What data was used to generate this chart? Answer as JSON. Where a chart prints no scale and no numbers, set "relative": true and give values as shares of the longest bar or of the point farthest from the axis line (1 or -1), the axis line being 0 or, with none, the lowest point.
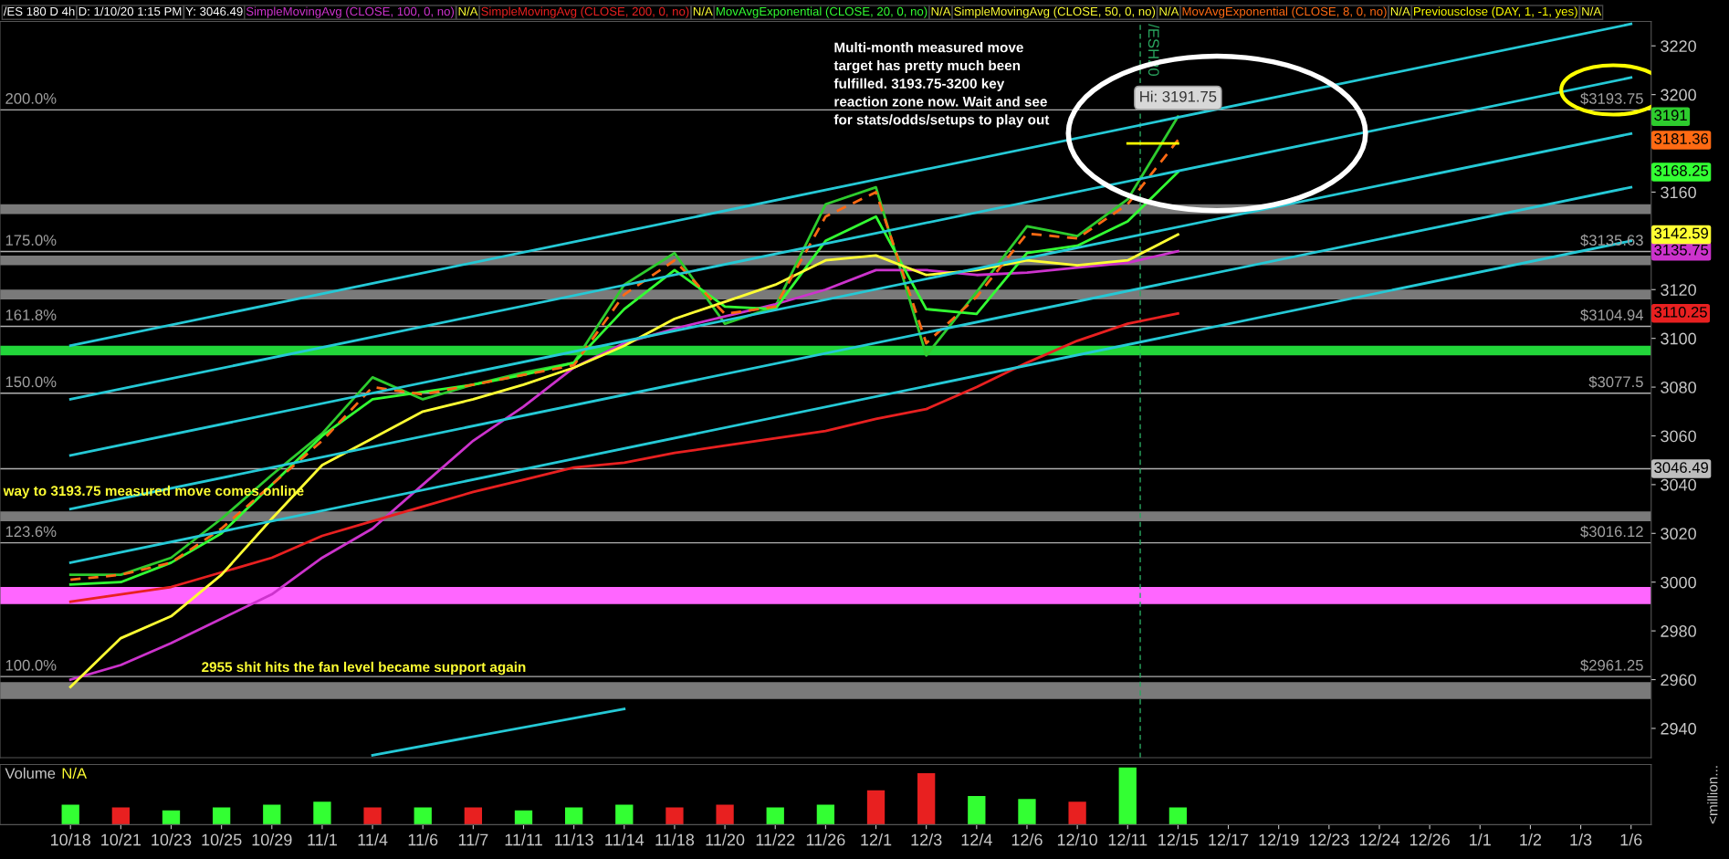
{
  "chart_data": [
    {
      "type": "line",
      "annotations": [
        "/ES 180 D 4h",
        "D: 1/10/20 1:15 PM",
        "Y: 3046.49",
        "N/A",
        "N/A",
        "N/A",
        "N/A",
        "N/A",
        "N/A",
        "200.0%",
        "175.0%",
        "161.8%",
        "150.0%",
        "123.6%",
        "100.0%",
        "Multi-month measured move target has pretty much been fulfilled. 3193.75-3200 key reaction zone now. Wait and see for stats/odds/setups to play out",
        "way to 3193.75 measured move comes online",
        "3191",
        "3135.75",
        "3110.25",
        "3168.25",
        "3142.59",
        "3181.36",
        {
          "text": "2955 shit hits the fan level became support again",
          "x": "10/25",
          "y": 2962
        },
        {
          "text": "Hi: 3191.75",
          "x": "12/15",
          "y": 3191.75
        }
      ],
      "categories": [
        "10/18",
        "10/21",
        "10/23",
        "10/25",
        "10/29",
        "11/1",
        "11/4",
        "11/6",
        "11/7",
        "11/11",
        "11/13",
        "11/14",
        "11/18",
        "11/20",
        "11/22",
        "11/26",
        "12/1",
        "12/3",
        "12/4",
        "12/6",
        "12/10",
        "12/11",
        "12/15",
        "12/17",
        "12/19",
        "12/23",
        "12/24",
        "12/26",
        "1/1",
        "1/2",
        "1/3",
        "1/6"
      ],
      "series": [
        {
          "color": "#2ecc2e",
          "values": [
            3003,
            3003,
            3010,
            3026,
            3044,
            3061,
            3084,
            3075,
            3081,
            3086,
            3090,
            3122,
            3135,
            3106,
            3113,
            3155,
            3162,
            3093,
            3119,
            3146,
            3142,
            3157,
            3191,
            null,
            null,
            null,
            null,
            null,
            null,
            null,
            null,
            null
          ]
        },
        {
          "name": "SimpleMovingAvg (CLOSE, 100, 0, no)",
          "color": "#cc33cc",
          "values": [
            2960,
            2966,
            2975,
            2985,
            2995,
            3010,
            3022,
            3040,
            3058,
            3072,
            3088,
            3098,
            3104,
            3109,
            3114,
            3120,
            3128,
            3128,
            3126,
            3127,
            3129,
            3131,
            3135.75,
            null,
            null,
            null,
            null,
            null,
            null,
            null,
            null,
            null
          ]
        },
        {
          "name": "SimpleMovingAvg (CLOSE, 200, 0, no)",
          "color": "#e82020",
          "values": [
            2992,
            2995,
            2998,
            3004,
            3010,
            3019,
            3025,
            3031,
            3037,
            3042,
            3047,
            3049,
            3053,
            3056,
            3059,
            3062,
            3067,
            3071,
            3080,
            3090,
            3099,
            3106,
            3110.25,
            null,
            null,
            null,
            null,
            null,
            null,
            null,
            null,
            null
          ]
        },
        {
          "name": "MovAvgExponential (CLOSE, 20, 0, no)",
          "color": "#33ff33",
          "values": [
            2999,
            3000,
            3008,
            3020,
            3040,
            3060,
            3075,
            3078,
            3081,
            3085,
            3090,
            3112,
            3128,
            3113,
            3112,
            3140,
            3150,
            3112,
            3110,
            3135,
            3138,
            3148,
            3168.25,
            null,
            null,
            null,
            null,
            null,
            null,
            null,
            null,
            null
          ]
        },
        {
          "name": "SimpleMovingAvg (CLOSE, 50, 0, no)",
          "color": "#ffff33",
          "values": [
            2957,
            2977,
            2986,
            3003,
            3026,
            3048,
            3059,
            3070,
            3075,
            3081,
            3088,
            3097,
            3108,
            3115,
            3122,
            3132,
            3134,
            3126,
            3128,
            3132,
            3130,
            3132,
            3142.59,
            null,
            null,
            null,
            null,
            null,
            null,
            null,
            null,
            null
          ]
        },
        {
          "name": "MovAvgExponential (CLOSE, 8, 0, no)",
          "color": "#ff6a13",
          "line_style": "dashed",
          "values": [
            3001,
            3003,
            3008,
            3022,
            3040,
            3058,
            3080,
            3077,
            3081,
            3085,
            3089,
            3118,
            3132,
            3110,
            3113,
            3150,
            3160,
            3098,
            3117,
            3143,
            3141,
            3155,
            3181.36,
            null,
            null,
            null,
            null,
            null,
            null,
            null,
            null,
            null
          ]
        },
        {
          "name": "Previousclose (DAY, 1, -1, yes)",
          "color": "#ffff00",
          "values": [
            null,
            null,
            null,
            null,
            null,
            null,
            null,
            null,
            null,
            null,
            null,
            null,
            null,
            null,
            null,
            null,
            null,
            null,
            null,
            null,
            null,
            3180,
            3180,
            null,
            null,
            null,
            null,
            null,
            null,
            null,
            null,
            null
          ]
        },
        {
          "color": "#25c9d6",
          "values": [
            3097,
            null,
            null,
            null,
            null,
            null,
            null,
            null,
            null,
            null,
            null,
            null,
            null,
            null,
            null,
            null,
            null,
            null,
            null,
            null,
            null,
            null,
            null,
            null,
            null,
            null,
            null,
            null,
            null,
            null,
            null,
            3229
          ]
        },
        {
          "color": "#25c9d6",
          "values": [
            3075,
            null,
            null,
            null,
            null,
            null,
            null,
            null,
            null,
            null,
            null,
            null,
            null,
            null,
            null,
            null,
            null,
            null,
            null,
            null,
            null,
            null,
            null,
            null,
            null,
            null,
            null,
            null,
            null,
            null,
            null,
            3207
          ]
        },
        {
          "color": "#25c9d6",
          "values": [
            3052,
            null,
            null,
            null,
            null,
            null,
            null,
            null,
            null,
            null,
            null,
            null,
            null,
            null,
            null,
            null,
            null,
            null,
            null,
            null,
            null,
            null,
            null,
            null,
            null,
            null,
            null,
            null,
            null,
            null,
            null,
            3184
          ]
        },
        {
          "color": "#25c9d6",
          "values": [
            3030,
            null,
            null,
            null,
            null,
            null,
            null,
            null,
            null,
            null,
            null,
            null,
            null,
            null,
            null,
            null,
            null,
            null,
            null,
            null,
            null,
            null,
            null,
            null,
            null,
            null,
            null,
            null,
            null,
            null,
            null,
            3162
          ]
        },
        {
          "color": "#25c9d6",
          "values": [
            3008,
            null,
            null,
            null,
            null,
            null,
            null,
            null,
            null,
            null,
            null,
            null,
            null,
            null,
            null,
            null,
            null,
            null,
            null,
            null,
            null,
            null,
            null,
            null,
            null,
            null,
            null,
            null,
            null,
            null,
            null,
            3140
          ]
        },
        {
          "color": "#25c9d6",
          "values": [
            null,
            null,
            null,
            null,
            null,
            null,
            2929,
            null,
            null,
            null,
            null,
            2948,
            null,
            null,
            null,
            null,
            null,
            null,
            null,
            null,
            null,
            null,
            null,
            null,
            null,
            null,
            null,
            null,
            null,
            null,
            null,
            null
          ]
        }
      ],
      "ylim": [
        2928,
        3230
      ],
      "yticks": [
        2940,
        2960,
        2980,
        3000,
        3020,
        3040,
        3060,
        3080,
        3100,
        3120,
        3160,
        3200,
        3220
      ],
      "ref_lines": [
        {
          "axis": "y",
          "value": 3193.75,
          "label": "$3193.75",
          "color": "#b0b0b0"
        },
        {
          "axis": "y",
          "value": 3135.63,
          "label": "$3135.63",
          "color": "#b0b0b0"
        },
        {
          "axis": "y",
          "value": 3104.94,
          "label": "$3104.94",
          "color": "#b0b0b0"
        },
        {
          "axis": "y",
          "value": 3077.5,
          "label": "$3077.5",
          "color": "#b0b0b0"
        },
        {
          "axis": "y",
          "value": 3016.12,
          "label": "$3016.12",
          "color": "#b0b0b0"
        },
        {
          "axis": "y",
          "value": 2961.25,
          "label": "$2961.25",
          "color": "#b0b0b0"
        },
        {
          "axis": "y",
          "value": 3046.49,
          "label": "3046.49",
          "color": "#b0b0b0"
        },
        {
          "axis": "x",
          "value": "12/11",
          "label": "/ESH20",
          "color": "#2aa860",
          "line_style": "dashed"
        }
      ],
      "bands": [
        {
          "axis": "y",
          "from": 3151,
          "to": 3155,
          "label": null,
          "color": "#7a7a7a"
        },
        {
          "axis": "y",
          "from": 3130,
          "to": 3134,
          "label": null,
          "color": "#7a7a7a"
        },
        {
          "axis": "y",
          "from": 3116,
          "to": 3120,
          "label": null,
          "color": "#7a7a7a"
        },
        {
          "axis": "y",
          "from": 3093,
          "to": 3097,
          "label": null,
          "color": "#22d63a"
        },
        {
          "axis": "y",
          "from": 3025,
          "to": 3029,
          "label": null,
          "color": "#7a7a7a"
        },
        {
          "axis": "y",
          "from": 2991,
          "to": 2998,
          "label": null,
          "color": "#ff66ff"
        },
        {
          "axis": "y",
          "from": 2952,
          "to": 2959,
          "label": null,
          "color": "#7a7a7a"
        }
      ],
      "grid": false,
      "legend": "top",
      "marker": "none",
      "tick_labels": "y"
    },
    {
      "type": "bar",
      "title": "Volume",
      "relative": true,
      "annotations": [
        "N/A",
        "<million..."
      ],
      "categories": [
        "10/18",
        "10/21",
        "10/23",
        "10/25",
        "10/29",
        "11/1",
        "11/4",
        "11/6",
        "11/7",
        "11/11",
        "11/13",
        "11/14",
        "11/18",
        "11/20",
        "11/22",
        "11/26",
        "12/1",
        "12/3",
        "12/4",
        "12/6",
        "12/10",
        "12/11",
        "12/15",
        "12/17",
        "12/19",
        "12/23",
        "12/24",
        "12/26",
        "1/1",
        "1/2",
        "1/3",
        "1/6"
      ],
      "values": [
        0.35,
        0.3,
        0.25,
        0.3,
        0.35,
        0.4,
        0.3,
        0.3,
        0.3,
        0.25,
        0.3,
        0.35,
        0.3,
        0.35,
        0.3,
        0.35,
        0.6,
        0.9,
        0.5,
        0.45,
        0.4,
        1,
        0.3,
        null,
        null,
        null,
        null,
        null,
        null,
        null,
        null,
        null
      ],
      "colors": [
        "#33ff33",
        "#e82020",
        "#33ff33",
        "#33ff33",
        "#33ff33",
        "#33ff33",
        "#e82020",
        "#33ff33",
        "#e82020",
        "#33ff33",
        "#33ff33",
        "#33ff33",
        "#e82020",
        "#e82020",
        "#33ff33",
        "#33ff33",
        "#e82020",
        "#e82020",
        "#33ff33",
        "#33ff33",
        "#e82020",
        "#33ff33",
        "#33ff33",
        "#33ff33",
        "#33ff33",
        "#33ff33",
        "#33ff33",
        "#33ff33",
        "#33ff33",
        "#33ff33",
        "#33ff33",
        "#33ff33"
      ],
      "grid": false,
      "tick_labels": "x"
    }
  ]
}
